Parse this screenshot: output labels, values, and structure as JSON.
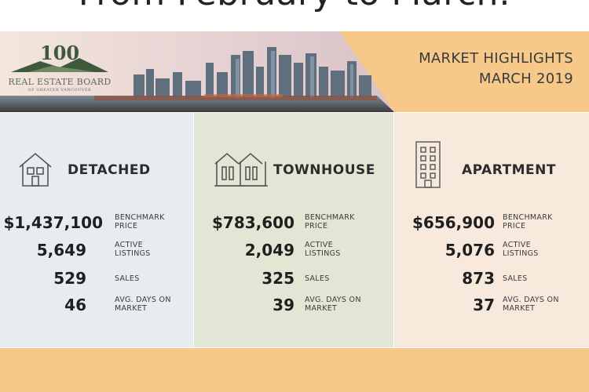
{
  "heading": "From February to March:",
  "banner": {
    "logo_text": "REAL ESTATE BOARD",
    "logo_subtext": "OF GREATER VANCOUVER",
    "title_line1": "MARKET HIGHLIGHTS",
    "title_line2": "MARCH 2019",
    "colors": {
      "accent": "#f6c98a",
      "logo_green": "#3e5a3a"
    }
  },
  "panels": [
    {
      "name": "DETACHED",
      "icon": "house-icon",
      "stats": [
        {
          "value": "$1,437,100",
          "label1": "BENCHMARK",
          "label2": "PRICE"
        },
        {
          "value": "5,649",
          "label1": "ACTIVE",
          "label2": "LISTINGS"
        },
        {
          "value": "529",
          "label1": "SALES",
          "label2": ""
        },
        {
          "value": "46",
          "label1": "AVG. DAYS ON",
          "label2": "MARKET"
        }
      ]
    },
    {
      "name": "TOWNHOUSE",
      "icon": "townhouse-icon",
      "stats": [
        {
          "value": "$783,600",
          "label1": "BENCHMARK",
          "label2": "PRICE"
        },
        {
          "value": "2,049",
          "label1": "ACTIVE",
          "label2": "LISTINGS"
        },
        {
          "value": "325",
          "label1": "SALES",
          "label2": ""
        },
        {
          "value": "39",
          "label1": "AVG. DAYS ON",
          "label2": "MARKET"
        }
      ]
    },
    {
      "name": "APARTMENT",
      "icon": "apartment-icon",
      "stats": [
        {
          "value": "$656,900",
          "label1": "BENCHMARK",
          "label2": "PRICE"
        },
        {
          "value": "5,076",
          "label1": "ACTIVE",
          "label2": "LISTINGS"
        },
        {
          "value": "873",
          "label1": "SALES",
          "label2": ""
        },
        {
          "value": "37",
          "label1": "AVG. DAYS ON",
          "label2": "MARKET"
        }
      ]
    }
  ]
}
